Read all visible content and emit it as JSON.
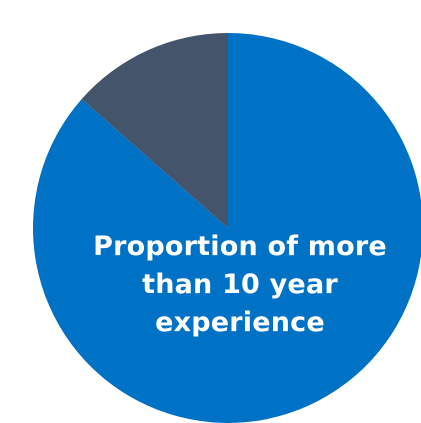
{
  "chart_data": {
    "type": "pie",
    "title": "",
    "slices": [
      {
        "value": 0.865,
        "color": "#0072C6",
        "name": ""
      },
      {
        "value": 0.135,
        "color": "#44546A",
        "name": ""
      }
    ],
    "label": {
      "lines": [
        "Proportion of more",
        "than 10 year",
        "experience"
      ],
      "color": "#FFFFFF"
    },
    "legend": "none"
  }
}
